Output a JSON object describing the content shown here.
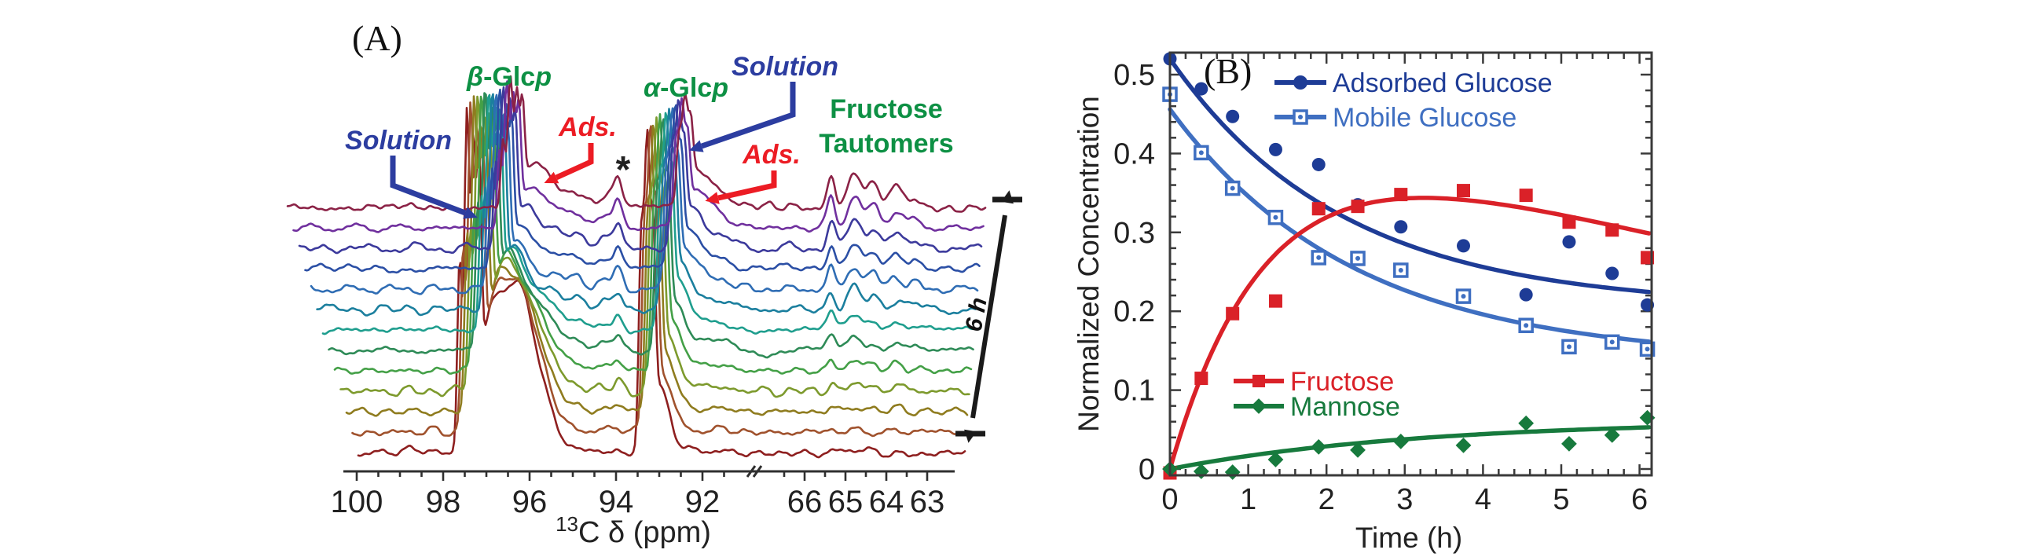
{
  "figure": {
    "background": "#ffffff",
    "panelA": {
      "label": "(A)",
      "axis": {
        "label_sup": "13",
        "label_main": "C δ (ppm)"
      },
      "annotations": {
        "solution_left": "Solution",
        "ads_left": "Ads.",
        "beta_glcp": {
          "greek": "β",
          "mid": "-Glc",
          "suffix": "p"
        },
        "alpha_glcp": {
          "greek": "α",
          "mid": "-Glc",
          "suffix": "p"
        },
        "solution_right": "Solution",
        "ads_right": "Ads.",
        "fructose_line1": "Fructose",
        "fructose_line2": "Tautomers",
        "asterisk": "*",
        "time_span": "6 h"
      },
      "colors": {
        "solution": "#2c3da0",
        "ads": "#ec1c24",
        "assignment_green": "#0d9044",
        "axis": "#2f2f2f",
        "arrow_black": "#1a1a1a"
      }
    },
    "panelB": {
      "label": "(B)"
    }
  },
  "chart_data": [
    {
      "id": "A",
      "type": "line",
      "title": "Stacked 13C NMR spectra acquired over 6 h",
      "xlabel": "13C δ (ppm)",
      "x_axis_reversed": true,
      "axis_break_between": [
        91,
        67
      ],
      "ticks_left": [
        100,
        98,
        96,
        94,
        92
      ],
      "ticks_right": [
        66,
        65,
        64,
        63
      ],
      "n_spectra": 13,
      "time_span_label": "6 h",
      "assignments": [
        {
          "label": "beta-Glcp Solution",
          "ppm": 97.0
        },
        {
          "label": "beta-Glcp Ads.",
          "ppm": 95.5
        },
        {
          "label": "impurity *",
          "ppm": 93.9
        },
        {
          "label": "alpha-Glcp Solution",
          "ppm": 92.9
        },
        {
          "label": "alpha-Glcp Ads.",
          "ppm": 91.9
        },
        {
          "label": "Fructose Tautomers",
          "ppm_range": [
            65.5,
            63.3
          ]
        }
      ],
      "trace_colors": [
        "#8e1f1f",
        "#a0522d",
        "#8f7c1f",
        "#7d9a2d",
        "#44a047",
        "#2e8b57",
        "#1f9e8e",
        "#1b7f9e",
        "#2f6db4",
        "#2b4fa5",
        "#3c3a9c",
        "#70309e",
        "#8b2246"
      ],
      "peaks": [
        {
          "ppm": 97.45,
          "sigma": 3.2,
          "h0": 420,
          "dh": -22,
          "fan": 4.6
        },
        {
          "ppm": 97.62,
          "sigma": 2.8,
          "h0": 240,
          "dh": -13,
          "fan": 4.6
        },
        {
          "ppm": 97.3,
          "sigma": 2.8,
          "h0": 330,
          "dh": -17,
          "fan": 4.6
        },
        {
          "ppm": 97.17,
          "sigma": 2.8,
          "h0": 290,
          "dh": -15,
          "fan": 4.6
        },
        {
          "ppm": 96.95,
          "sigma": 13,
          "h0": 95,
          "dh": -4.5,
          "fan": 4.6
        },
        {
          "ppm": 96.3,
          "sigma": 26,
          "h0": 215,
          "dh": -28,
          "fan": 1.5
        },
        {
          "ppm": 95.55,
          "sigma": 16,
          "h0": 2,
          "dh": 2.4,
          "fan": 0
        },
        {
          "ppm": 94.9,
          "sigma": 11,
          "h0": 1,
          "dh": 1.5,
          "fan": 0
        },
        {
          "ppm": 94.25,
          "sigma": 9,
          "h0": 1.5,
          "dh": 1.3,
          "fan": 0
        },
        {
          "ppm": 93.95,
          "sigma": 5.5,
          "h0": 3,
          "dh": 2.6,
          "fan": 0
        },
        {
          "ppm": 93.28,
          "sigma": 3.4,
          "h0": 360,
          "dh": -20,
          "fan": 4.0
        },
        {
          "ppm": 93.42,
          "sigma": 3.0,
          "h0": 250,
          "dh": -14,
          "fan": 4.0
        },
        {
          "ppm": 93.14,
          "sigma": 3.0,
          "h0": 215,
          "dh": -12,
          "fan": 4.0
        },
        {
          "ppm": 93.0,
          "sigma": 13,
          "h0": 80,
          "dh": -4,
          "fan": 4.0
        },
        {
          "ppm": 91.8,
          "sigma": 20,
          "h0": 1,
          "dh": 1.9,
          "fan": 0
        },
        {
          "ppm": 65.35,
          "sigma": 5,
          "h0": -2,
          "dh": 3.6,
          "fan": 0
        },
        {
          "ppm": 64.77,
          "sigma": 9,
          "h0": -2,
          "dh": 3.9,
          "fan": 0
        },
        {
          "ppm": 64.31,
          "sigma": 7,
          "h0": -1,
          "dh": 2.4,
          "fan": 0
        },
        {
          "ppm": 63.77,
          "sigma": 9,
          "h0": -1,
          "dh": 2.2,
          "fan": 0
        },
        {
          "ppm": 63.29,
          "sigma": 6,
          "h0": 0,
          "dh": 0.9,
          "fan": 0
        }
      ]
    },
    {
      "id": "B",
      "type": "scatter",
      "xlabel": "Time (h)",
      "ylabel": "Normalized Concentration",
      "xlim": [
        0,
        6.16
      ],
      "ylim": [
        -0.008,
        0.528
      ],
      "x_ticks": [
        0,
        1,
        2,
        3,
        4,
        5,
        6
      ],
      "y_ticks": [
        0,
        0.1,
        0.2,
        0.3,
        0.4,
        0.5
      ],
      "x": [
        0,
        0.4,
        0.8,
        1.35,
        1.9,
        2.4,
        2.95,
        3.75,
        4.55,
        5.1,
        5.65,
        6.1
      ],
      "series": [
        {
          "name": "Adsorbed Glucose",
          "color": "#1e3c96",
          "marker": "circle",
          "values": [
            0.52,
            0.482,
            0.447,
            0.405,
            0.386,
            0.335,
            0.307,
            0.283,
            0.221,
            0.288,
            0.248,
            0.208
          ],
          "fit": {
            "type": "exp",
            "a": 0.205,
            "b": 0.315,
            "tau": 2.2
          }
        },
        {
          "name": "Mobile Glucose",
          "color": "#3f6fc1",
          "marker": "open-square",
          "values": [
            0.475,
            0.401,
            0.356,
            0.319,
            0.268,
            0.267,
            0.252,
            0.219,
            0.182,
            0.155,
            0.161,
            0.152
          ],
          "fit": {
            "type": "exp",
            "a": 0.138,
            "b": 0.318,
            "tau": 2.35
          }
        },
        {
          "name": "Fructose",
          "color": "#da2128",
          "marker": "square",
          "values": [
            -0.005,
            0.115,
            0.197,
            0.213,
            0.33,
            0.333,
            0.348,
            0.353,
            0.347,
            0.313,
            0.303,
            0.268
          ],
          "fit": {
            "type": "biexp",
            "a": 0.505,
            "tau1": 1.3,
            "tau2": 12
          }
        },
        {
          "name": "Mannose",
          "color": "#177a3d",
          "marker": "diamond",
          "values": [
            0.0,
            -0.003,
            -0.004,
            0.012,
            0.028,
            0.024,
            0.035,
            0.03,
            0.058,
            0.032,
            0.043,
            0.065
          ],
          "fit": {
            "type": "sat",
            "a": 0.062,
            "tau": 3.2
          }
        }
      ],
      "legend_position": [
        "top-left",
        "bottom-left"
      ],
      "grid": false
    }
  ]
}
